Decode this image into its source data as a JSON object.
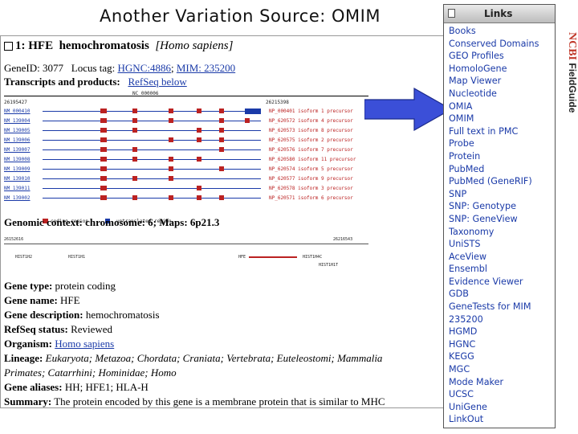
{
  "slide": {
    "title": "Another Variation Source: OMIM",
    "side_brand": "NCBI",
    "side_label": "FieldGuide"
  },
  "gene": {
    "index": "1:",
    "symbol": "HFE",
    "name": "hemochromatosis",
    "species": "[Homo sapiens]",
    "geneid_label": "GeneID: 3077",
    "locus_label": "Locus tag:",
    "hgnc_link": "HGNC:4886",
    "mim_link": "MIM: 235200",
    "transcripts_label": "Transcripts and products:",
    "refseq_link": "RefSeq below",
    "contig": "NC_000006",
    "coord_left": "26195427",
    "coord_right": "26215398",
    "transcripts": [
      "NM_000410",
      "NM_139004",
      "NM_139005",
      "NM_139006",
      "NM_139007",
      "NM_139008",
      "NM_139009",
      "NM_139010",
      "NM_139011",
      "NM_139002"
    ],
    "proteins": [
      "NP_000401 isoform 1 precursor",
      "NP_620572 isoform 4 precursor",
      "NP_620573 isoform 8 precursor",
      "NP_620575 isoform 2 precursor",
      "NP_620576 isoform 7 precursor",
      "NP_620580 isoform 11 precursor",
      "NP_620574 isoform 5 precursor",
      "NP_620577 isoform 9 precursor",
      "NP_620578 isoform 3 precursor",
      "NP_620571 isoform 6 precursor"
    ],
    "legend_coding": "coding region",
    "legend_untranslated": "untranslated region",
    "genomic_context": "Genomic context: chromosome: 6; Maps: 6p21.3",
    "ctx_left": "26152616",
    "ctx_right": "26216543",
    "ctx_genes": [
      "HIST1H2",
      "HIST1H1",
      "HFE",
      "HIST1H4C",
      "HIST1H1T"
    ],
    "gene_type_label": "Gene type:",
    "gene_type": "protein coding",
    "gene_name_label": "Gene name:",
    "gene_name": "HFE",
    "gene_desc_label": "Gene description:",
    "gene_desc": "hemochromatosis",
    "refseq_status_label": "RefSeq status:",
    "refseq_status": "Reviewed",
    "organism_label": "Organism:",
    "organism": "Homo sapiens",
    "lineage_label": "Lineage:",
    "lineage_1": "Eukaryota; Metazoa; Chordata; Craniata; Vertebrata; Euteleostomi; Mammalia",
    "lineage_2": "Primates; Catarrhini; Hominidae; Homo",
    "aliases_label": "Gene aliases:",
    "aliases": "HH; HFE1; HLA-H",
    "summary_label": "Summary:",
    "summary": "The protein encoded by this gene is a membrane protein that is similar to MHC"
  },
  "links": {
    "title": "Links",
    "items": [
      "Books",
      "Conserved Domains",
      "GEO Profiles",
      "HomoloGene",
      "Map Viewer",
      "Nucleotide",
      "OMIA",
      "OMIM",
      "Full text in PMC",
      "Probe",
      "Protein",
      "PubMed",
      "PubMed (GeneRIF)",
      "SNP",
      "SNP: Genotype",
      "SNP: GeneView",
      "Taxonomy",
      "UniSTS",
      "AceView",
      "Ensembl",
      "Evidence Viewer",
      "GDB",
      "GeneTests for MIM",
      "235200",
      "HGMD",
      "HGNC",
      "KEGG",
      "MGC",
      "Mode Maker",
      "UCSC",
      "UniGene",
      "LinkOut"
    ]
  },
  "colors": {
    "link_blue": "#1a3aa8",
    "exon_red": "#b22222",
    "arrow_blue": "#3b4fd8"
  }
}
